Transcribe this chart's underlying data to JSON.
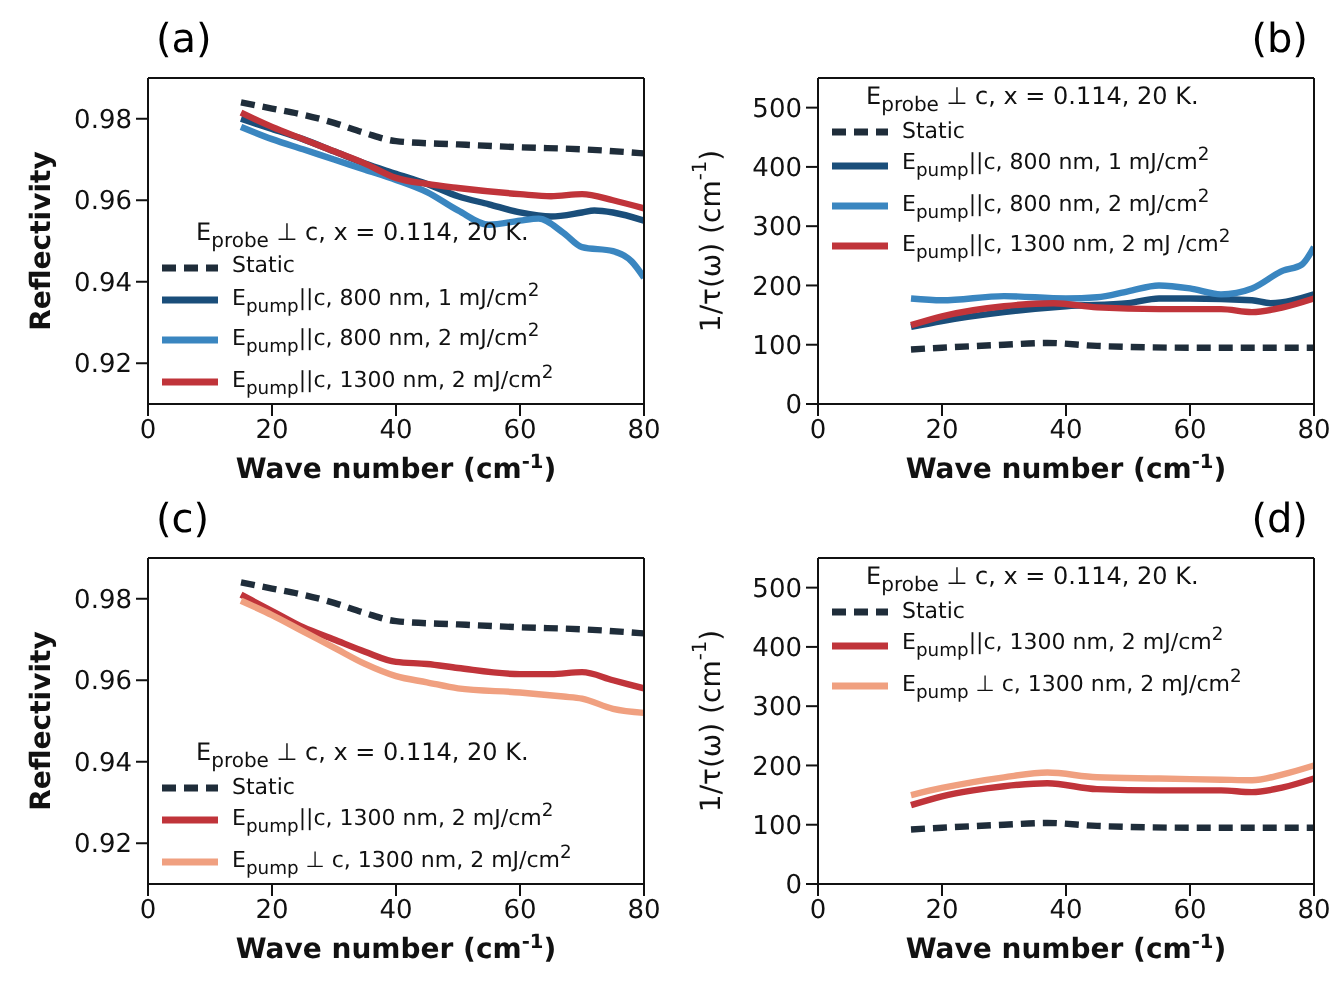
{
  "chart_data": [
    {
      "type": "line",
      "title": "(a)",
      "xlabel": "Wave number (cm$^{-1}$)",
      "ylabel": "Reflectivity",
      "legend_title": "E$_{probe}$ ⊥ c, x = 0.114, 20 K.",
      "xlim": [
        0,
        80
      ],
      "xticks": [
        0,
        20,
        40,
        60,
        80
      ],
      "ylim": [
        0.91,
        0.99
      ],
      "yticks": [
        0.92,
        0.94,
        0.96,
        0.98
      ],
      "grid": false,
      "legend": "bottom",
      "marker": "none",
      "series": [
        {
          "name": "Static",
          "color": "#1f2d3a",
          "line_style": "dashed",
          "x": [
            15,
            20,
            25,
            30,
            35,
            40,
            50,
            60,
            70,
            80
          ],
          "values": [
            0.984,
            0.9825,
            0.981,
            0.979,
            0.9765,
            0.9745,
            0.9737,
            0.973,
            0.9725,
            0.9715
          ]
        },
        {
          "name": "E$_{pump}$||c, 800 nm, 1 mJ/cm$^{2}$",
          "color": "#1a4e7a",
          "line_style": "solid",
          "x": [
            15,
            20,
            25,
            30,
            35,
            40,
            45,
            50,
            55,
            60,
            65,
            70,
            72,
            75,
            80
          ],
          "values": [
            0.98,
            0.9775,
            0.975,
            0.972,
            0.969,
            0.9665,
            0.964,
            0.961,
            0.959,
            0.957,
            0.956,
            0.957,
            0.9575,
            0.957,
            0.955
          ]
        },
        {
          "name": "E$_{pump}$||c, 800 nm, 2 mJ/cm$^{2}$",
          "color": "#3a86c0",
          "line_style": "solid",
          "x": [
            15,
            20,
            25,
            30,
            35,
            40,
            45,
            50,
            55,
            60,
            63,
            67,
            70,
            75,
            78,
            80
          ],
          "values": [
            0.978,
            0.975,
            0.9725,
            0.97,
            0.9675,
            0.965,
            0.962,
            0.9575,
            0.954,
            0.955,
            0.9555,
            0.952,
            0.9485,
            0.9475,
            0.945,
            0.941
          ]
        },
        {
          "name": "E$_{pump}$||c, 1300 nm, 2 mJ/cm$^{2}$",
          "color": "#c0343a",
          "line_style": "solid",
          "x": [
            15,
            20,
            25,
            30,
            35,
            40,
            45,
            50,
            60,
            65,
            70,
            75,
            80
          ],
          "values": [
            0.9815,
            0.978,
            0.975,
            0.972,
            0.969,
            0.9655,
            0.964,
            0.963,
            0.9615,
            0.961,
            0.9615,
            0.96,
            0.958
          ]
        }
      ]
    },
    {
      "type": "line",
      "title": "(b)",
      "xlabel": "Wave number (cm$^{-1}$)",
      "ylabel": "1/τ(ω) (cm$^{-1}$)",
      "legend_title": "E$_{probe}$ ⊥ c, x = 0.114, 20 K.",
      "xlim": [
        0,
        80
      ],
      "xticks": [
        0,
        20,
        40,
        60,
        80
      ],
      "ylim": [
        0,
        550
      ],
      "yticks": [
        0,
        100,
        200,
        300,
        400,
        500
      ],
      "grid": false,
      "legend": "top",
      "marker": "none",
      "series": [
        {
          "name": "Static",
          "color": "#1f2d3a",
          "line_style": "dashed",
          "x": [
            15,
            20,
            30,
            37,
            45,
            60,
            80
          ],
          "values": [
            92,
            95,
            100,
            103,
            98,
            95,
            95
          ]
        },
        {
          "name": "E$_{pump}$||c, 800 nm, 1 mJ/cm$^{2}$",
          "color": "#1a4e7a",
          "line_style": "solid",
          "x": [
            15,
            20,
            30,
            40,
            50,
            55,
            60,
            70,
            73,
            80
          ],
          "values": [
            130,
            140,
            155,
            165,
            170,
            178,
            178,
            175,
            170,
            185
          ]
        },
        {
          "name": "E$_{pump}$||c, 800 nm, 2 mJ/cm$^{2}$",
          "color": "#3a86c0",
          "line_style": "solid",
          "x": [
            15,
            20,
            30,
            40,
            45,
            50,
            55,
            60,
            65,
            70,
            75,
            78,
            80
          ],
          "values": [
            178,
            175,
            182,
            178,
            180,
            190,
            200,
            195,
            185,
            195,
            225,
            235,
            265
          ]
        },
        {
          "name": "E$_{pump}$||c, 1300 nm, 2 mJ /cm$^{2}$",
          "color": "#c0343a",
          "line_style": "solid",
          "x": [
            15,
            20,
            30,
            38,
            45,
            55,
            65,
            70,
            75,
            80
          ],
          "values": [
            133,
            148,
            165,
            170,
            163,
            160,
            160,
            155,
            163,
            178
          ]
        }
      ]
    },
    {
      "type": "line",
      "title": "(c)",
      "xlabel": "Wave number (cm$^{-1}$)",
      "ylabel": "Reflectivity",
      "legend_title": "E$_{probe}$ ⊥ c, x = 0.114, 20 K.",
      "xlim": [
        0,
        80
      ],
      "xticks": [
        0,
        20,
        40,
        60,
        80
      ],
      "ylim": [
        0.91,
        0.99
      ],
      "yticks": [
        0.92,
        0.94,
        0.96,
        0.98
      ],
      "grid": false,
      "legend": "bottom",
      "marker": "none",
      "series": [
        {
          "name": "Static",
          "color": "#1f2d3a",
          "line_style": "dashed",
          "x": [
            15,
            20,
            25,
            30,
            35,
            40,
            50,
            60,
            70,
            80
          ],
          "values": [
            0.984,
            0.9825,
            0.981,
            0.979,
            0.9765,
            0.9745,
            0.9737,
            0.973,
            0.9725,
            0.9715
          ]
        },
        {
          "name": "E$_{pump}$||c, 1300 nm, 2 mJ/cm$^{2}$",
          "color": "#c0343a",
          "line_style": "solid",
          "x": [
            15,
            20,
            25,
            30,
            35,
            40,
            45,
            50,
            60,
            65,
            70,
            75,
            80
          ],
          "values": [
            0.981,
            0.977,
            0.973,
            0.97,
            0.967,
            0.9645,
            0.964,
            0.963,
            0.9615,
            0.9615,
            0.962,
            0.96,
            0.958
          ]
        },
        {
          "name": "E$_{pump}$ ⊥ c, 1300 nm, 2 mJ/cm$^{2}$",
          "color": "#f0a080",
          "line_style": "solid",
          "x": [
            15,
            20,
            25,
            30,
            35,
            40,
            45,
            50,
            60,
            67,
            70,
            75,
            80
          ],
          "values": [
            0.9795,
            0.976,
            0.972,
            0.968,
            0.964,
            0.961,
            0.9595,
            0.958,
            0.957,
            0.956,
            0.9555,
            0.953,
            0.952
          ]
        }
      ]
    },
    {
      "type": "line",
      "title": "(d)",
      "xlabel": "Wave number (cm$^{-1}$)",
      "ylabel": "1/τ(ω) (cm$^{-1}$)",
      "legend_title": "E$_{probe}$ ⊥ c, x = 0.114, 20 K.",
      "xlim": [
        0,
        80
      ],
      "xticks": [
        0,
        20,
        40,
        60,
        80
      ],
      "ylim": [
        0,
        550
      ],
      "yticks": [
        0,
        100,
        200,
        300,
        400,
        500
      ],
      "grid": false,
      "legend": "top",
      "marker": "none",
      "series": [
        {
          "name": "Static",
          "color": "#1f2d3a",
          "line_style": "dashed",
          "x": [
            15,
            20,
            30,
            37,
            45,
            60,
            80
          ],
          "values": [
            92,
            95,
            100,
            103,
            98,
            95,
            95
          ]
        },
        {
          "name": "E$_{pump}$||c, 1300 nm, 2 mJ/cm$^{2}$",
          "color": "#c0343a",
          "line_style": "solid",
          "x": [
            15,
            20,
            25,
            30,
            37,
            45,
            55,
            65,
            70,
            75,
            80
          ],
          "values": [
            133,
            148,
            158,
            165,
            170,
            160,
            158,
            158,
            155,
            163,
            178
          ]
        },
        {
          "name": "E$_{pump}$ ⊥ c, 1300 nm, 2 mJ/cm$^{2}$",
          "color": "#f0a080",
          "line_style": "solid",
          "x": [
            15,
            20,
            25,
            30,
            37,
            45,
            55,
            65,
            70,
            75,
            80
          ],
          "values": [
            150,
            162,
            172,
            180,
            188,
            180,
            178,
            176,
            175,
            185,
            200
          ]
        }
      ]
    }
  ]
}
